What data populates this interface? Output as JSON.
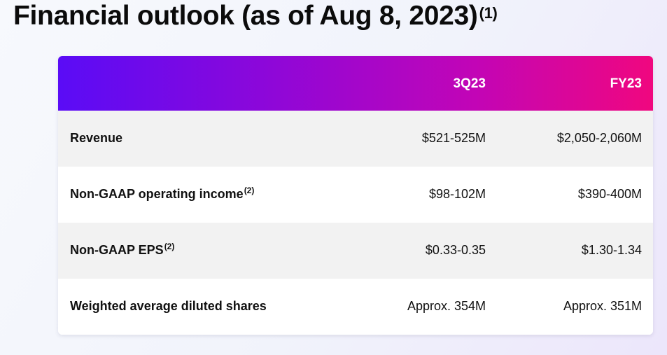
{
  "title": {
    "text": "Financial outlook (as of Aug 8, 2023)",
    "footnote": "(1)"
  },
  "table": {
    "columns": [
      "3Q23",
      "FY23"
    ],
    "rows": [
      {
        "label": "Revenue",
        "footnote": "",
        "q": "$521-525M",
        "fy": "$2,050-2,060M"
      },
      {
        "label": "Non-GAAP operating income",
        "footnote": "(2)",
        "q": "$98-102M",
        "fy": "$390-400M"
      },
      {
        "label": "Non-GAAP EPS",
        "footnote": "(2)",
        "q": "$0.33-0.35",
        "fy": "$1.30-1.34"
      },
      {
        "label": "Weighted average diluted shares",
        "footnote": "",
        "q": "Approx. 354M",
        "fy": "Approx. 351M"
      }
    ]
  },
  "colors": {
    "header_gradient": [
      "#5a0cf6",
      "#8d07d9",
      "#c205b6",
      "#f0077f"
    ],
    "row_shade": "#f2f2f2",
    "row_white": "#ffffff"
  }
}
